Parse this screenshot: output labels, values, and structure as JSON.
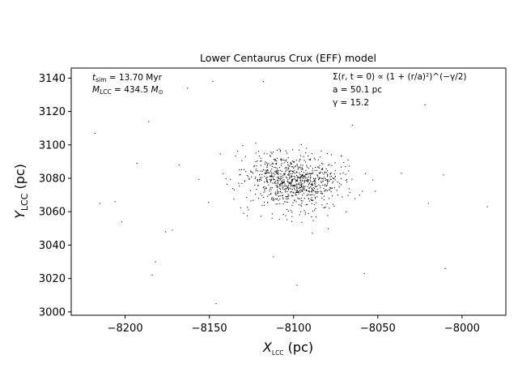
{
  "chart_data": {
    "type": "scatter",
    "title": "Lower Centaurus Crux (EFF) model",
    "xlabel": {
      "main": "X",
      "sub": "LCC",
      "unit": " (pc)"
    },
    "ylabel": {
      "main": "Y",
      "sub": "LCC",
      "unit": " (pc)"
    },
    "xlim": [
      -8232,
      -7974
    ],
    "ylim": [
      2998,
      3146
    ],
    "xticks": [
      -8200,
      -8150,
      -8100,
      -8050,
      -8000
    ],
    "yticks": [
      3000,
      3020,
      3040,
      3060,
      3080,
      3100,
      3120,
      3140
    ],
    "grid": false,
    "annotations": {
      "t_sim": {
        "symbol": "t",
        "sub": "sim",
        "rest": " = 13.70 Myr"
      },
      "m_lcc": {
        "symbol": "M",
        "sub": "LCC",
        "rest": " = 434.5 ",
        "unit": "M",
        "unit_sub": "⊙"
      },
      "profile": "Σ(r, t = 0) ∝ (1 + (r/a)²)^(−γ/2)",
      "a": "a = 50.1 pc",
      "gamma": "γ = 15.2"
    },
    "model": {
      "cx": -8100,
      "cy": 3078,
      "a": 50.1,
      "gamma": 15.2,
      "n_points": 900
    },
    "points_outlier": [
      [
        -8218,
        3107
      ],
      [
        -8215,
        3065
      ],
      [
        -8206,
        3066
      ],
      [
        -8202,
        3054
      ],
      [
        -8193,
        3089
      ],
      [
        -8186,
        3114
      ],
      [
        -8184,
        3022
      ],
      [
        -8182,
        3030
      ],
      [
        -8176,
        3048
      ],
      [
        -8172,
        3049
      ],
      [
        -8168,
        3088
      ],
      [
        -8163,
        3134
      ],
      [
        -8148,
        3138
      ],
      [
        -8146,
        3005
      ],
      [
        -8118,
        3138
      ],
      [
        -8112,
        3033
      ],
      [
        -8098,
        3016
      ],
      [
        -8058,
        3023
      ],
      [
        -8036,
        3083
      ],
      [
        -8022,
        3124
      ],
      [
        -8020,
        3065
      ],
      [
        -8011,
        3082
      ],
      [
        -8010,
        3026
      ],
      [
        -7985,
        3063
      ]
    ]
  }
}
